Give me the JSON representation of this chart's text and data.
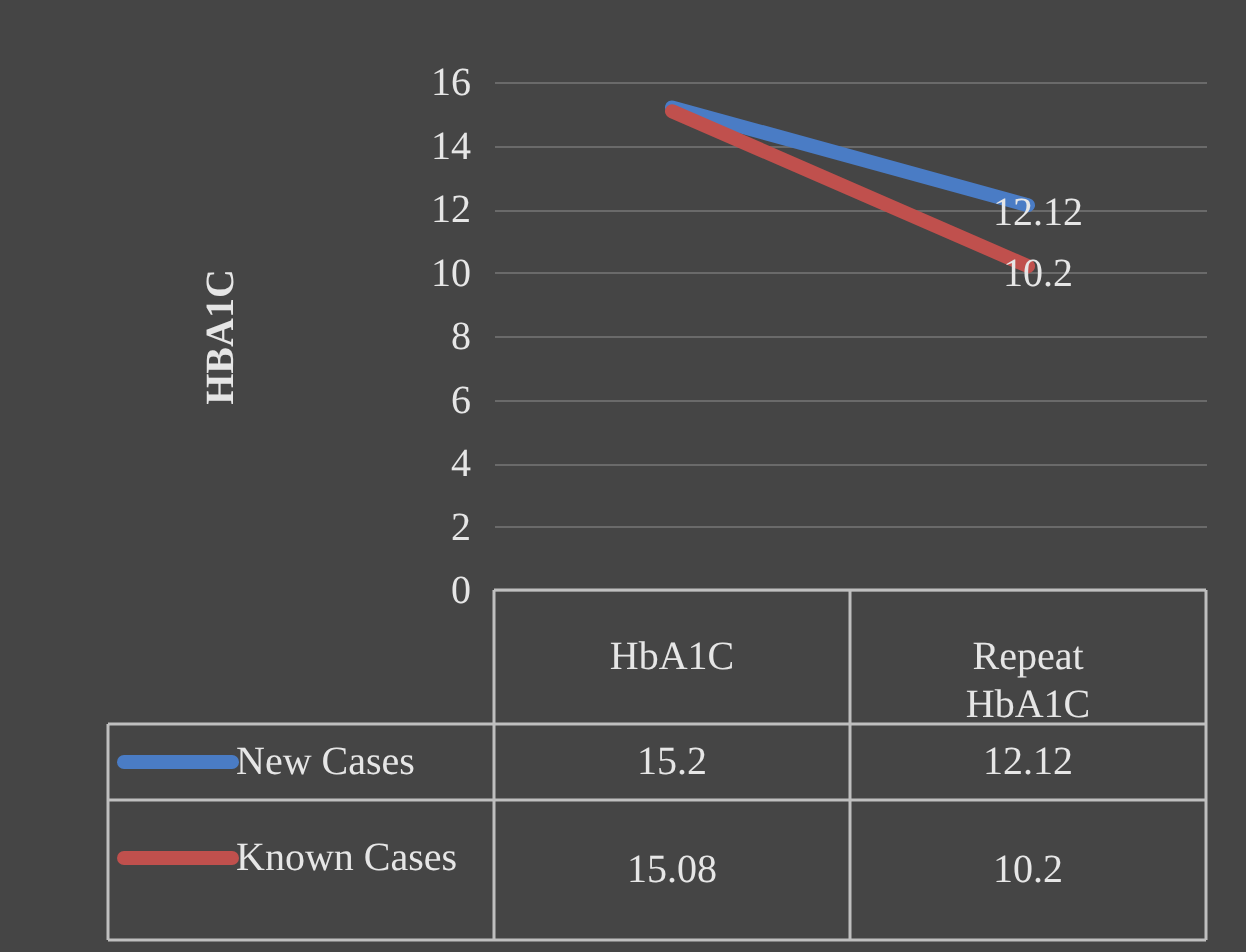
{
  "chart_data": {
    "type": "line",
    "ylabel": "HBA1C",
    "categories": [
      "HbA1C",
      "Repeat HbA1C"
    ],
    "series": [
      {
        "name": "New Cases",
        "color": "#4a7cc5",
        "values": [
          15.2,
          12.12
        ]
      },
      {
        "name": "Known Cases",
        "color": "#c0504d",
        "values": [
          15.08,
          10.2
        ]
      }
    ],
    "annotations": [
      {
        "text": "12.12",
        "x": "Repeat HbA1C",
        "y": 12.12
      },
      {
        "text": "10.2",
        "x": "Repeat HbA1C",
        "y": 10.2
      }
    ],
    "ylim": [
      0,
      16
    ],
    "yticks": [
      0,
      2,
      4,
      6,
      8,
      10,
      12,
      14,
      16
    ],
    "grid": "y",
    "legend": "bottom left",
    "data_labels": true,
    "line_style": "solid",
    "marker": "none"
  }
}
